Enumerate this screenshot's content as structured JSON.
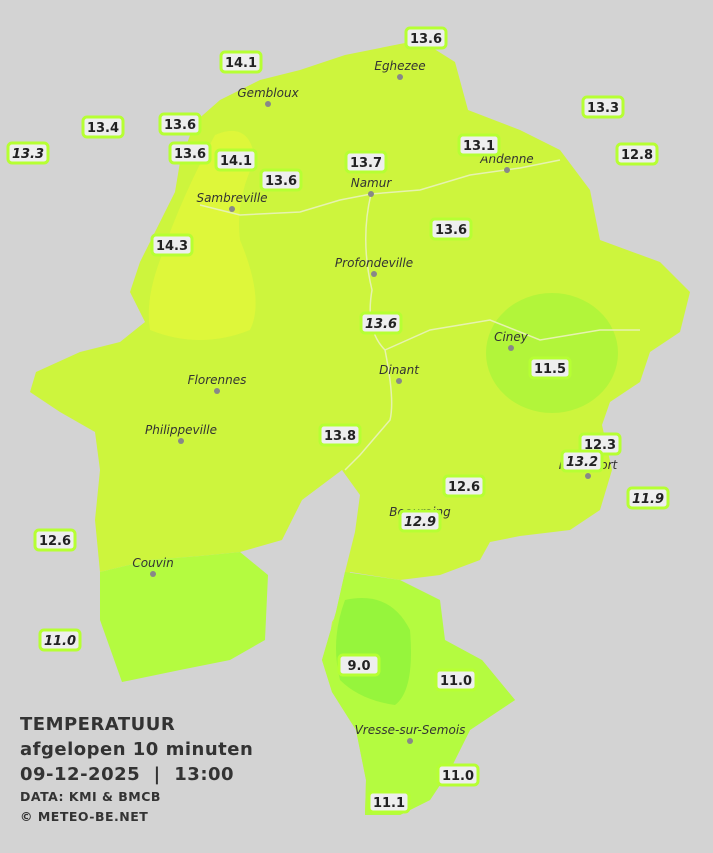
{
  "legend": {
    "title": "TEMPERATUUR",
    "subtitle": "afgelopen 10 minuten",
    "datetime": "09-12-2025  |  13:00",
    "source": "DATA: KMI & BMCB",
    "credit": "© METEO-BE.NET"
  },
  "towns": [
    {
      "label": "Eghezee"
    },
    {
      "label": "Gembloux"
    },
    {
      "label": "Andenne"
    },
    {
      "label": "Namur"
    },
    {
      "label": "Sambreville"
    },
    {
      "label": "Profondeville"
    },
    {
      "label": "Ciney"
    },
    {
      "label": "Dinant"
    },
    {
      "label": "Florennes"
    },
    {
      "label": "Philippeville"
    },
    {
      "label": "Rochefort"
    },
    {
      "label": "Beauraing"
    },
    {
      "label": "Couvin"
    },
    {
      "label": "Vresse-sur-Semois"
    }
  ],
  "stations": [
    {
      "label": "14.1"
    },
    {
      "label": "13.6"
    },
    {
      "label": "13.4"
    },
    {
      "label": "13.6"
    },
    {
      "label": "13.3"
    },
    {
      "label": "13.3"
    },
    {
      "label": "13.6"
    },
    {
      "label": "14.1"
    },
    {
      "label": "13.7"
    },
    {
      "label": "13.1"
    },
    {
      "label": "12.8"
    },
    {
      "label": "13.6"
    },
    {
      "label": "14.3"
    },
    {
      "label": "13.6"
    },
    {
      "label": "13.6"
    },
    {
      "label": "11.5"
    },
    {
      "label": "13.8"
    },
    {
      "label": "12.3"
    },
    {
      "label": "13.2"
    },
    {
      "label": "12.6"
    },
    {
      "label": "11.9"
    },
    {
      "label": "12.9"
    },
    {
      "label": "12.6"
    },
    {
      "label": "11.0"
    },
    {
      "label": "9.0"
    },
    {
      "label": "11.0"
    },
    {
      "label": "11.0"
    },
    {
      "label": "11.1"
    }
  ]
}
